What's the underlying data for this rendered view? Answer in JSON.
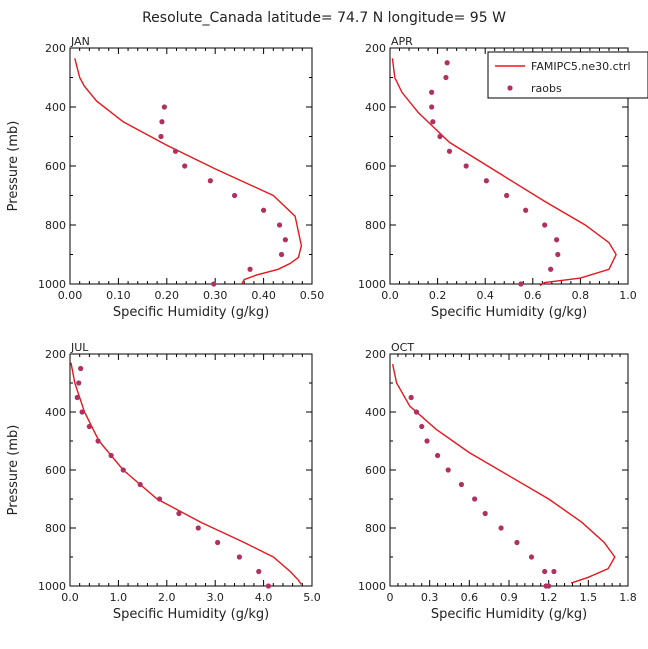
{
  "figure": {
    "title": "Resolute_Canada   latitude=  74.7 N longitude=  95 W"
  },
  "legend": {
    "model_label": "FAMIPC5.ne30.ctrl",
    "obs_label": "raobs",
    "model_color": "#e8171c",
    "obs_color": "#b03060"
  },
  "chart_data": [
    {
      "type": "line",
      "title": "JAN",
      "xlabel": "Specific Humidity (g/kg)",
      "ylabel": "Pressure (mb)",
      "xlim": [
        0,
        0.5
      ],
      "ylim": [
        200,
        1000
      ],
      "y_inverted": true,
      "xticks": [
        0,
        0.1,
        0.2,
        0.3,
        0.4,
        0.5
      ],
      "xtick_labels": [
        "0.00",
        "0.10",
        "0.20",
        "0.30",
        "0.40",
        "0.50"
      ],
      "yticks": [
        200,
        400,
        600,
        800,
        1000
      ],
      "ytick_labels": [
        "200",
        "400",
        "600",
        "800",
        "1000"
      ],
      "series": [
        {
          "name": "FAMIPC5.ne30.ctrl",
          "kind": "line",
          "x": [
            0.01,
            0.02,
            0.03,
            0.055,
            0.11,
            0.2,
            0.3,
            0.42,
            0.465,
            0.478,
            0.472,
            0.455,
            0.43,
            0.385,
            0.36,
            0.355
          ],
          "y": [
            235,
            300,
            330,
            380,
            450,
            530,
            610,
            700,
            770,
            870,
            910,
            930,
            950,
            970,
            985,
            1000
          ]
        },
        {
          "name": "raobs",
          "kind": "scatter",
          "x": [
            0.195,
            0.19,
            0.188,
            0.218,
            0.237,
            0.29,
            0.34,
            0.4,
            0.433,
            0.445,
            0.437,
            0.372,
            0.297
          ],
          "y": [
            400,
            450,
            500,
            550,
            600,
            650,
            700,
            750,
            800,
            850,
            900,
            950,
            1000
          ]
        }
      ]
    },
    {
      "type": "line",
      "title": "APR",
      "xlabel": "Specific Humidity (g/kg)",
      "ylabel": "",
      "xlim": [
        0,
        1.0
      ],
      "ylim": [
        200,
        1000
      ],
      "y_inverted": true,
      "xticks": [
        0,
        0.2,
        0.4,
        0.6,
        0.8,
        1.0
      ],
      "xtick_labels": [
        "0.0",
        "0.2",
        "0.4",
        "0.6",
        "0.8",
        "1.0"
      ],
      "yticks": [
        200,
        400,
        600,
        800,
        1000
      ],
      "ytick_labels": [
        "200",
        "400",
        "600",
        "800",
        "1000"
      ],
      "series": [
        {
          "name": "FAMIPC5.ne30.ctrl",
          "kind": "line",
          "x": [
            0.01,
            0.02,
            0.05,
            0.12,
            0.25,
            0.45,
            0.65,
            0.82,
            0.92,
            0.95,
            0.92,
            0.8,
            0.65,
            0.63
          ],
          "y": [
            235,
            300,
            350,
            420,
            520,
            620,
            720,
            800,
            860,
            900,
            950,
            980,
            995,
            1005
          ]
        },
        {
          "name": "raobs",
          "kind": "scatter",
          "x": [
            0.24,
            0.235,
            0.175,
            0.175,
            0.18,
            0.21,
            0.25,
            0.32,
            0.405,
            0.49,
            0.57,
            0.65,
            0.7,
            0.705,
            0.675,
            0.55
          ],
          "y": [
            250,
            300,
            350,
            400,
            450,
            500,
            550,
            600,
            650,
            700,
            750,
            800,
            850,
            900,
            950,
            1000
          ]
        }
      ]
    },
    {
      "type": "line",
      "title": "JUL",
      "xlabel": "Specific Humidity (g/kg)",
      "ylabel": "Pressure (mb)",
      "xlim": [
        0,
        5.0
      ],
      "ylim": [
        200,
        1000
      ],
      "y_inverted": true,
      "xticks": [
        0,
        1,
        2,
        3,
        4,
        5
      ],
      "xtick_labels": [
        "0.0",
        "1.0",
        "2.0",
        "3.0",
        "4.0",
        "5.0"
      ],
      "yticks": [
        200,
        400,
        600,
        800,
        1000
      ],
      "ytick_labels": [
        "200",
        "400",
        "600",
        "800",
        "1000"
      ],
      "series": [
        {
          "name": "FAMIPC5.ne30.ctrl",
          "kind": "line",
          "x": [
            0.02,
            0.1,
            0.3,
            0.6,
            1.1,
            1.8,
            2.7,
            3.6,
            4.2,
            4.55,
            4.72,
            4.78
          ],
          "y": [
            230,
            300,
            400,
            500,
            600,
            700,
            780,
            850,
            900,
            950,
            980,
            995
          ]
        },
        {
          "name": "raobs",
          "kind": "scatter",
          "x": [
            0.22,
            0.18,
            0.15,
            0.25,
            0.4,
            0.58,
            0.85,
            1.1,
            1.45,
            1.85,
            2.25,
            2.65,
            3.05,
            3.5,
            3.9,
            4.1
          ],
          "y": [
            250,
            300,
            350,
            400,
            450,
            500,
            550,
            600,
            650,
            700,
            750,
            800,
            850,
            900,
            950,
            1000
          ]
        }
      ]
    },
    {
      "type": "line",
      "title": "OCT",
      "xlabel": "Specific Humidity (g/kg)",
      "ylabel": "",
      "xlim": [
        0,
        1.8
      ],
      "ylim": [
        200,
        1000
      ],
      "y_inverted": true,
      "xticks": [
        0,
        0.3,
        0.6,
        0.9,
        1.2,
        1.5,
        1.8
      ],
      "xtick_labels": [
        "0",
        "0.3",
        "0.6",
        "0.9",
        "1.2",
        "1.5",
        "1.8"
      ],
      "yticks": [
        200,
        400,
        600,
        800,
        1000
      ],
      "ytick_labels": [
        "200",
        "400",
        "600",
        "800",
        "1000"
      ],
      "series": [
        {
          "name": "FAMIPC5.ne30.ctrl",
          "kind": "line",
          "x": [
            0.02,
            0.05,
            0.15,
            0.35,
            0.6,
            0.9,
            1.2,
            1.45,
            1.62,
            1.7,
            1.65,
            1.5,
            1.37
          ],
          "y": [
            235,
            300,
            380,
            460,
            540,
            620,
            700,
            780,
            850,
            900,
            940,
            970,
            990
          ]
        },
        {
          "name": "raobs",
          "kind": "scatter",
          "x": [
            0.16,
            0.2,
            0.24,
            0.28,
            0.36,
            0.44,
            0.54,
            0.64,
            0.72,
            0.84,
            0.96,
            1.07,
            1.17,
            1.2,
            1.24,
            1.18
          ],
          "y": [
            350,
            400,
            450,
            500,
            550,
            600,
            650,
            700,
            750,
            800,
            850,
            900,
            950,
            1000,
            950,
            1000
          ]
        }
      ]
    }
  ]
}
